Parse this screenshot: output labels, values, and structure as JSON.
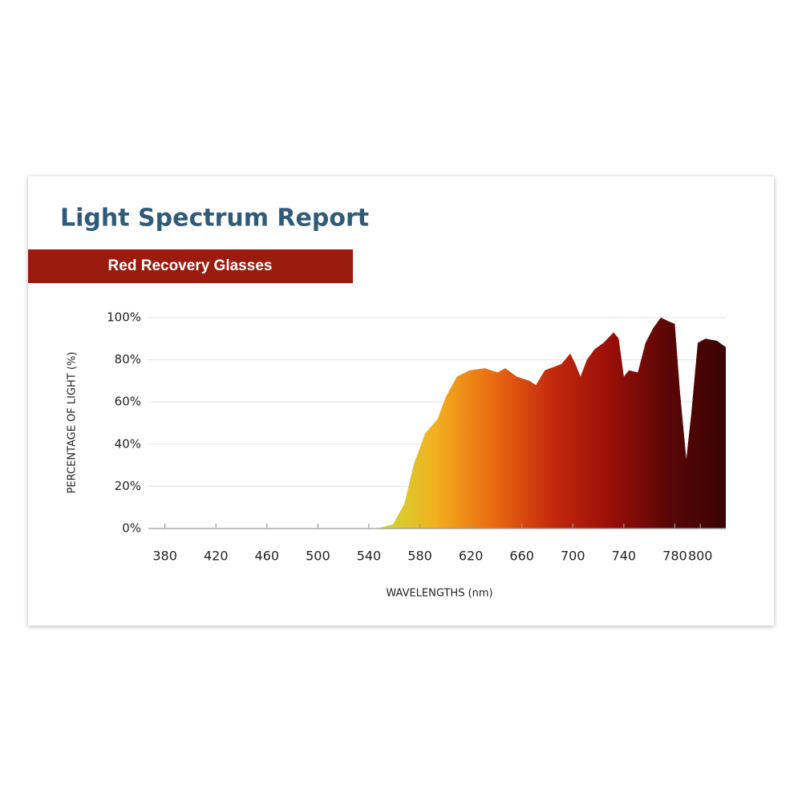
{
  "chart_data": {
    "type": "area",
    "title": "Light Spectrum Report",
    "subtitle": "Red Recovery Glasses",
    "xlabel": "WAVELENGTHS (nm)",
    "ylabel": "PERCENTAGE OF LIGHT (%)",
    "x": [
      546,
      559,
      568,
      575,
      584,
      594,
      600,
      609,
      619,
      631,
      641,
      647,
      656,
      666,
      671,
      678,
      691,
      698,
      702,
      706,
      711,
      717,
      724,
      732,
      736,
      740,
      744,
      751,
      757,
      763,
      769,
      776,
      780,
      784,
      789,
      793,
      798,
      804,
      813,
      820
    ],
    "values": [
      0,
      2,
      12,
      30,
      45,
      52,
      62,
      72,
      75,
      76,
      74,
      76,
      72,
      70,
      68,
      75,
      78,
      83,
      78,
      72,
      80,
      85,
      88,
      93,
      90,
      72,
      75,
      74,
      88,
      95,
      100,
      98,
      97,
      65,
      33,
      55,
      88,
      90,
      89,
      86
    ],
    "colors": [
      "#c9dc3a",
      "#f2b01e",
      "#ea6a12",
      "#c42a0c",
      "#9a0f08",
      "#5a0606",
      "#3a0404"
    ],
    "xlim": [
      367,
      820
    ],
    "xticks": [
      380,
      420,
      460,
      500,
      540,
      580,
      620,
      660,
      700,
      740,
      780,
      800
    ],
    "ylim": [
      0,
      100
    ],
    "yticks": [
      {
        "value": 0,
        "label": "0%"
      },
      {
        "value": 20,
        "label": "20%"
      },
      {
        "value": 40,
        "label": "40%"
      },
      {
        "value": 60,
        "label": "60%"
      },
      {
        "value": 80,
        "label": "80%"
      },
      {
        "value": 100,
        "label": "100%"
      }
    ],
    "grid": true
  }
}
